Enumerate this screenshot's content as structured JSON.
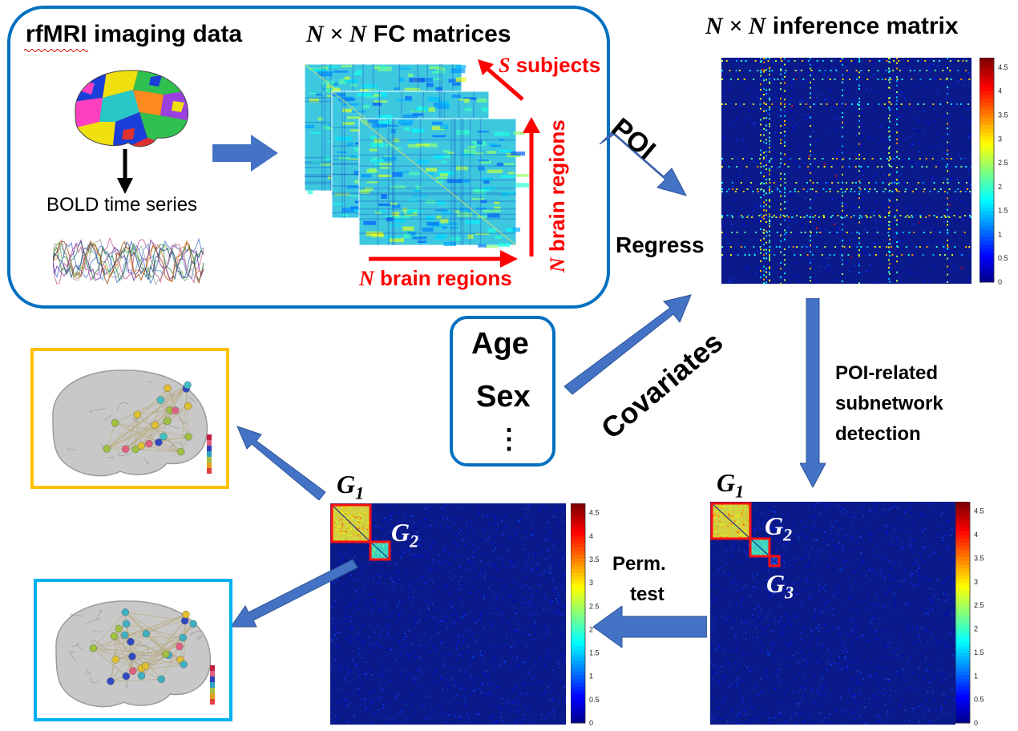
{
  "top_panel": {
    "title": "rfMRI imaging data",
    "bold_label": "BOLD time series",
    "fc_title_var": "N × N",
    "fc_title_rest": " FC matrices",
    "subjects_var": "S",
    "subjects_text": " subjects",
    "regions_var": "N",
    "regions_text": " brain regions"
  },
  "inference": {
    "title_var": "N × N",
    "title_rest": " inference matrix",
    "colorbar_ticks": [
      "4.5",
      "4",
      "3.5",
      "3",
      "2.5",
      "2",
      "1.5",
      "1",
      "0.5",
      "0"
    ]
  },
  "labels": {
    "poi": "POI",
    "regress": "Regress",
    "covariates": "Covariates",
    "age": "Age",
    "sex": "Sex",
    "ellipsis": "⋮",
    "detection_line1": "POI-related",
    "detection_line2": "subnetwork",
    "detection_line3": "detection",
    "perm_line1": "Perm.",
    "perm_line2": "test"
  },
  "subnetworks": {
    "g1": "G",
    "g1_sub": "1",
    "g2": "G",
    "g2_sub": "2",
    "g3": "G",
    "g3_sub": "3"
  },
  "colors": {
    "panel_border": "#0070c0",
    "arrow": "#4472c4",
    "red": "#ff0000",
    "yellow_frame": "#ffc000",
    "blue_frame": "#00b0f0",
    "matrix_bg": "#0b1a8a"
  }
}
